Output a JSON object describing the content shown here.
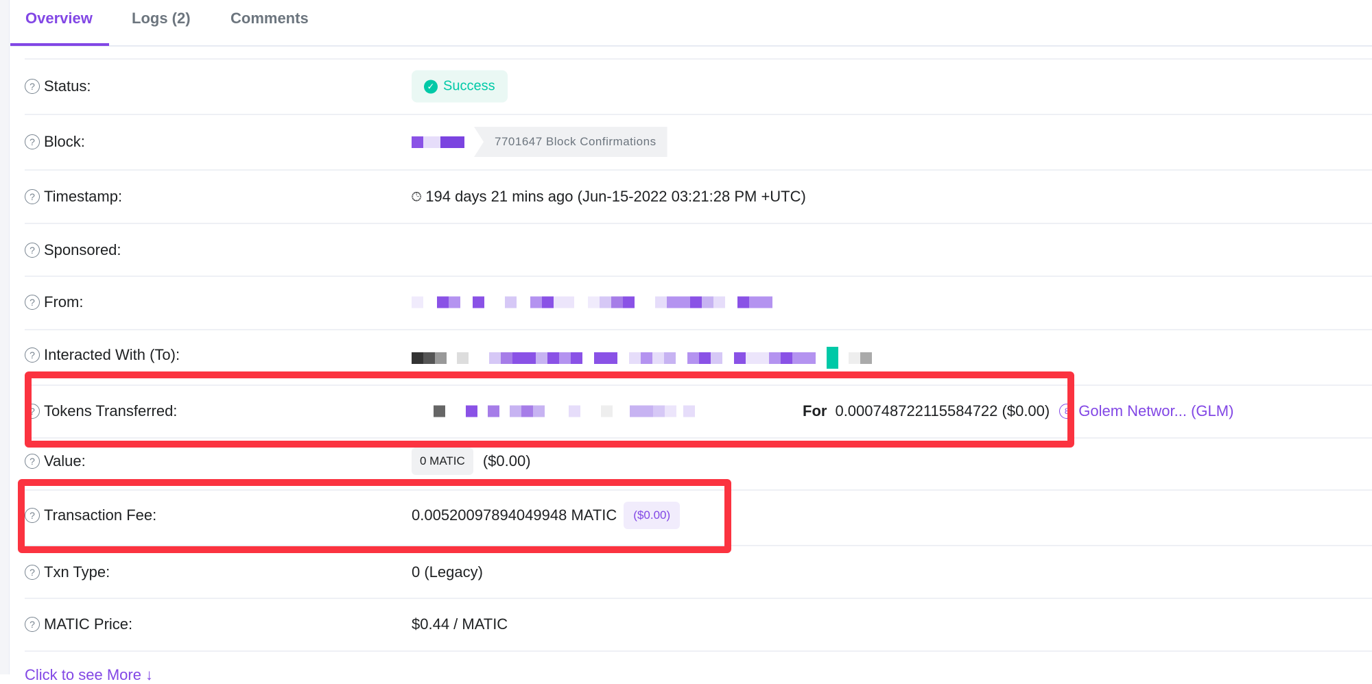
{
  "tabs": [
    {
      "label": "Overview",
      "active": true
    },
    {
      "label": "Logs (2)"
    },
    {
      "label": "Comments"
    }
  ],
  "rows": {
    "status": {
      "label": "Status:",
      "value": "Success"
    },
    "block": {
      "label": "Block:",
      "confirmations": "7701647 Block Confirmations"
    },
    "timestamp": {
      "label": "Timestamp:",
      "value": "194 days 21 mins ago (Jun-15-2022 03:21:28 PM +UTC)"
    },
    "sponsored": {
      "label": "Sponsored:"
    },
    "from": {
      "label": "From:"
    },
    "to": {
      "label": "Interacted With (To):"
    },
    "tokens": {
      "label": "Tokens Transferred:",
      "for_label": "For",
      "amount": "0.000748722115584722 ($0.00)",
      "token": "Golem Networ... (GLM)"
    },
    "value": {
      "label": "Value:",
      "amount": "0 MATIC",
      "usd": "($0.00)"
    },
    "fee": {
      "label": "Transaction Fee:",
      "amount": "0.00520097894049948 MATIC",
      "usd": "($0.00)"
    },
    "txn_type": {
      "label": "Txn Type:",
      "value": "0 (Legacy)"
    },
    "price": {
      "label": "MATIC Price:",
      "value": "$0.44 / MATIC"
    }
  },
  "more_link": "Click to see More ↓",
  "colors": {
    "accent": "#8247e5",
    "success": "#00c9a7",
    "highlight": "#fb3340"
  }
}
